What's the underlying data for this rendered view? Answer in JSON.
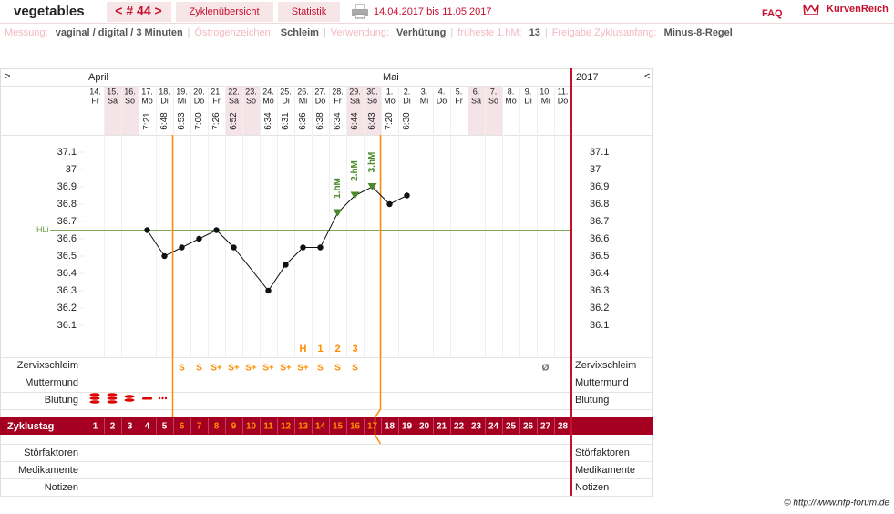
{
  "header": {
    "title": "vegetables",
    "cycle": "< # 44 >",
    "tabs": [
      "Zyklenübersicht",
      "Statistik"
    ],
    "date_range": "14.04.2017 bis 11.05.2017",
    "faq": "FAQ",
    "logo": "KurvenReich"
  },
  "settings_separator": "|",
  "settings": [
    {
      "label": "Messung:",
      "value": "vaginal / digital / 3 Minuten"
    },
    {
      "label": "Östrogenzeichen:",
      "value": "Schleim"
    },
    {
      "label": "Verwendung:",
      "value": "Verhütung"
    },
    {
      "label": "früheste 1.hM:",
      "value": "13"
    },
    {
      "label": "Freigabe Zyklusanfang:",
      "value": "Minus-8-Regel"
    }
  ],
  "chart": {
    "nav_left": ">",
    "nav_right": "<",
    "year": "2017",
    "months": [
      {
        "label": "April",
        "day": 1
      },
      {
        "label": "Mai",
        "day": 18
      }
    ],
    "days": [
      {
        "date": "14.",
        "weekday": "Fr"
      },
      {
        "date": "15.",
        "weekday": "Sa"
      },
      {
        "date": "16.",
        "weekday": "So"
      },
      {
        "date": "17.",
        "weekday": "Mo"
      },
      {
        "date": "18.",
        "weekday": "Di"
      },
      {
        "date": "19.",
        "weekday": "Mi"
      },
      {
        "date": "20.",
        "weekday": "Do"
      },
      {
        "date": "21.",
        "weekday": "Fr"
      },
      {
        "date": "22.",
        "weekday": "Sa"
      },
      {
        "date": "23.",
        "weekday": "So"
      },
      {
        "date": "24.",
        "weekday": "Mo"
      },
      {
        "date": "25.",
        "weekday": "Di"
      },
      {
        "date": "26.",
        "weekday": "Mi"
      },
      {
        "date": "27.",
        "weekday": "Do"
      },
      {
        "date": "28.",
        "weekday": "Fr"
      },
      {
        "date": "29.",
        "weekday": "Sa"
      },
      {
        "date": "30.",
        "weekday": "So"
      },
      {
        "date": "1.",
        "weekday": "Mo"
      },
      {
        "date": "2.",
        "weekday": "Di"
      },
      {
        "date": "3.",
        "weekday": "Mi"
      },
      {
        "date": "4.",
        "weekday": "Do"
      },
      {
        "date": "5.",
        "weekday": "Fr"
      },
      {
        "date": "6.",
        "weekday": "Sa"
      },
      {
        "date": "7.",
        "weekday": "So"
      },
      {
        "date": "8.",
        "weekday": "Mo"
      },
      {
        "date": "9.",
        "weekday": "Di"
      },
      {
        "date": "10.",
        "weekday": "Mi"
      },
      {
        "date": "11.",
        "weekday": "Do"
      }
    ],
    "weekend": [
      "Sa",
      "So"
    ],
    "temperatures": [
      {
        "day": 4,
        "time": "7:21",
        "value": 36.65
      },
      {
        "day": 5,
        "time": "6:48",
        "value": 36.5
      },
      {
        "day": 6,
        "time": "6:53",
        "value": 36.55
      },
      {
        "day": 7,
        "time": "7:00",
        "value": 36.6
      },
      {
        "day": 8,
        "time": "7:26",
        "value": 36.65
      },
      {
        "day": 9,
        "time": "6:52",
        "value": 36.55
      },
      {
        "day": 11,
        "time": "6:34",
        "value": 36.3
      },
      {
        "day": 12,
        "time": "6:31",
        "value": 36.45
      },
      {
        "day": 13,
        "time": "6:36",
        "value": 36.55
      },
      {
        "day": 14,
        "time": "6:38",
        "value": 36.55
      },
      {
        "day": 15,
        "time": "6:34",
        "value": 36.75
      },
      {
        "day": 16,
        "time": "6:44",
        "value": 36.85
      },
      {
        "day": 17,
        "time": "6:43",
        "value": 36.9
      },
      {
        "day": 18,
        "time": "7:20",
        "value": 36.8
      },
      {
        "day": 19,
        "time": "6:30",
        "value": 36.85
      }
    ],
    "ylim": [
      36.0,
      37.2
    ],
    "yticks": [
      37.1,
      37,
      36.9,
      36.8,
      36.7,
      36.6,
      36.5,
      36.4,
      36.3,
      36.2,
      36.1
    ],
    "hli": {
      "label": "HLi",
      "value": 36.65
    },
    "peaks": [
      {
        "day": 15,
        "label": "1.hM"
      },
      {
        "day": 16,
        "label": "2.hM"
      },
      {
        "day": 17,
        "label": "3.hM"
      }
    ],
    "marks": [
      {
        "day": 13,
        "label": "H"
      },
      {
        "day": 14,
        "label": "1"
      },
      {
        "day": 15,
        "label": "2"
      },
      {
        "day": 16,
        "label": "3"
      }
    ],
    "mucus": [
      {
        "day": 6,
        "label": "S"
      },
      {
        "day": 7,
        "label": "S"
      },
      {
        "day": 8,
        "label": "S+"
      },
      {
        "day": 9,
        "label": "S+"
      },
      {
        "day": 10,
        "label": "S+"
      },
      {
        "day": 11,
        "label": "S+"
      },
      {
        "day": 12,
        "label": "S+"
      },
      {
        "day": 13,
        "label": "S+"
      },
      {
        "day": 14,
        "label": "S"
      },
      {
        "day": 15,
        "label": "S"
      },
      {
        "day": 16,
        "label": "S"
      },
      {
        "day": 27,
        "label": "Ø"
      }
    ],
    "highlight_days": {
      "from": 6,
      "to": 17,
      "color": "#ff8c00"
    },
    "cycle_days": [
      1,
      2,
      3,
      4,
      5,
      6,
      7,
      8,
      9,
      10,
      11,
      12,
      13,
      14,
      15,
      16,
      17,
      18,
      19,
      20,
      21,
      22,
      23,
      24,
      25,
      26,
      27,
      28
    ],
    "rows": {
      "mucus": "Zervixschleim",
      "cervix": "Muttermund",
      "bleeding": "Blutung",
      "cycle_day": "Zyklustag",
      "disturbances": "Störfaktoren",
      "medication": "Medikamente",
      "notes": "Notizen"
    }
  },
  "footer": {
    "copyright": "© http://www.nfp-forum.de"
  }
}
